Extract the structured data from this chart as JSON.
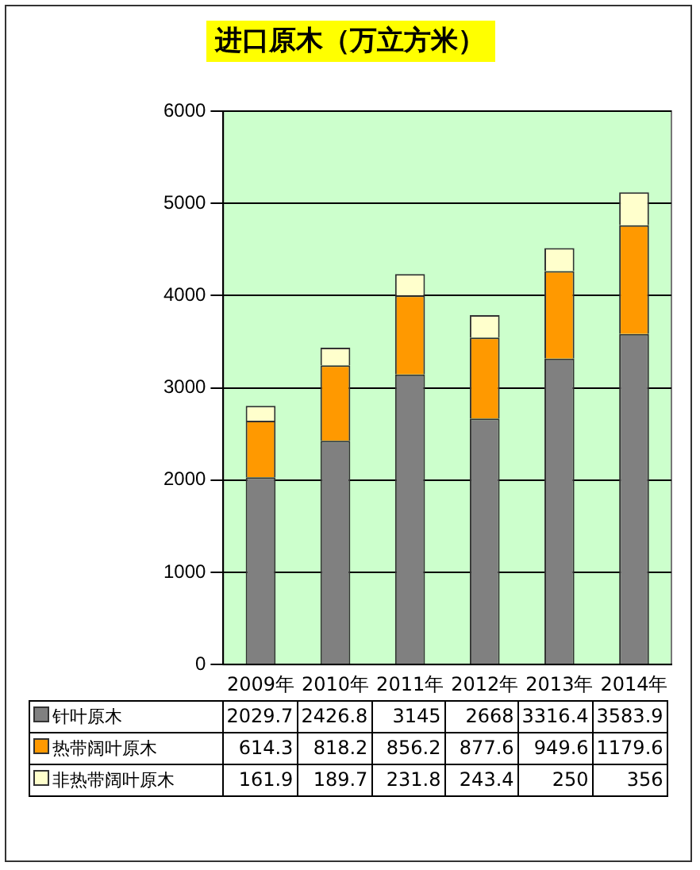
{
  "chart_data": {
    "type": "bar",
    "title": "进口原木（万立方米）",
    "categories": [
      "2009年",
      "2010年",
      "2011年",
      "2012年",
      "2013年",
      "2014年"
    ],
    "series": [
      {
        "name": "针叶原木",
        "color": "#808080",
        "values": [
          2029.7,
          2426.8,
          3145,
          2668,
          3316.4,
          3583.9
        ]
      },
      {
        "name": "热带阔叶原木",
        "color": "#ff9900",
        "values": [
          614.3,
          818.2,
          856.2,
          877.6,
          949.6,
          1179.6
        ]
      },
      {
        "name": "非热带阔叶原木",
        "color": "#ffffcc",
        "values": [
          161.9,
          189.7,
          231.8,
          243.4,
          250,
          356
        ]
      }
    ],
    "stacked": true,
    "ylim": [
      0,
      6000
    ],
    "yticks": [
      0,
      1000,
      2000,
      3000,
      4000,
      5000,
      6000
    ],
    "grid": "y",
    "legend": "bottom",
    "data_labels": true
  }
}
